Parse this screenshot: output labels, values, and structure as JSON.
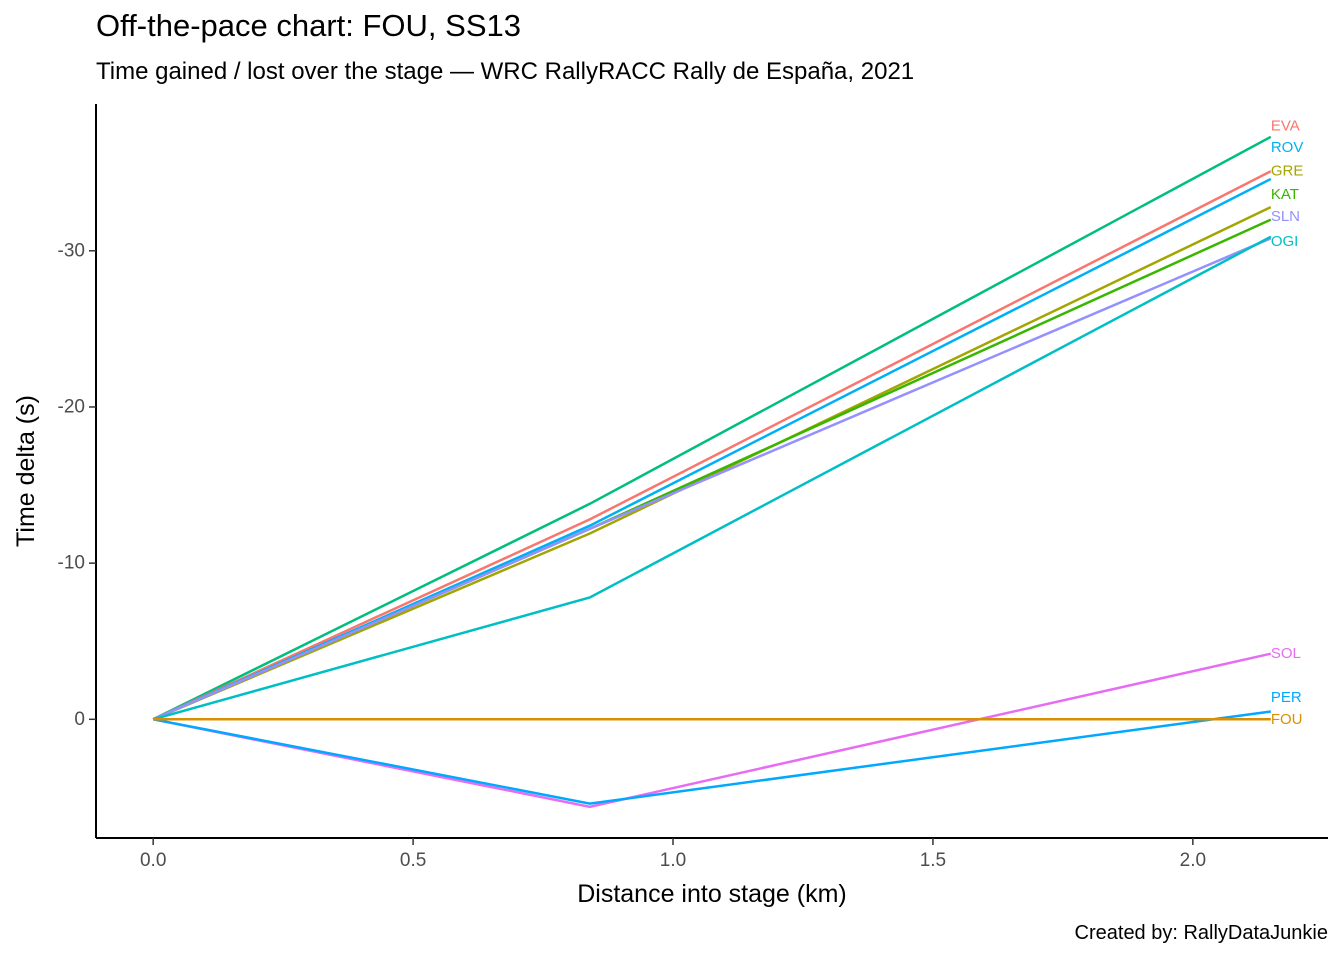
{
  "title": "Off-the-pace chart: FOU, SS13",
  "subtitle": "Time gained / lost over the stage — WRC RallyRACC Rally de España, 2021",
  "caption": "Created by: RallyDataJunkie",
  "chart_data": {
    "type": "line",
    "xlabel": "Distance into stage (km)",
    "ylabel": "Time delta (s)",
    "xlim": [
      -0.11,
      2.26
    ],
    "ylim": [
      7.6,
      -39.4
    ],
    "y_reversed": true,
    "x_ticks": [
      0.0,
      0.5,
      1.0,
      1.5,
      2.0
    ],
    "x_tick_labels": [
      "0.0",
      "0.5",
      "1.0",
      "1.5",
      "2.0"
    ],
    "y_ticks": [
      0,
      -10,
      -20,
      -30
    ],
    "y_tick_labels": [
      "0",
      "-10",
      "-20",
      "-30"
    ],
    "grid": false,
    "legend": "none",
    "x": [
      0,
      0.84,
      2.15
    ],
    "series": [
      {
        "name": "OGI",
        "color": "#00BF7D",
        "values": [
          0,
          -13.8,
          -37.3
        ],
        "label_y": -40.5
      },
      {
        "name": "EVA",
        "color": "#F8766D",
        "values": [
          0,
          -12.8,
          -35.1
        ],
        "label_y": -38.0
      },
      {
        "name": "ROV",
        "color": "#00B0F6",
        "values": [
          0,
          -12.4,
          -34.6
        ],
        "label_y": -36.6
      },
      {
        "name": "GRE",
        "color": "#A3A500",
        "values": [
          0,
          -11.9,
          -32.8
        ],
        "label_y": -35.1
      },
      {
        "name": "KAT",
        "color": "#39B600",
        "values": [
          0,
          -12.2,
          -32.0
        ],
        "label_y": -33.6
      },
      {
        "name": "SLN",
        "color": "#9590FF",
        "values": [
          0,
          -12.2,
          -30.8
        ],
        "label_y": -32.2
      },
      {
        "name": "OGI",
        "color": "#00BFC4",
        "values": [
          0,
          -7.8,
          -30.9
        ],
        "label_y": -30.6
      },
      {
        "name": "SOL",
        "color": "#E76BF3",
        "values": [
          0,
          5.6,
          -4.2
        ],
        "label_y": -4.2
      },
      {
        "name": "PER",
        "color": "#00A9FF",
        "values": [
          0,
          5.4,
          -0.5
        ],
        "label_y": -1.4
      },
      {
        "name": "FOU",
        "color": "#D89000",
        "values": [
          0,
          0,
          0
        ],
        "label_y": 0.0
      }
    ]
  }
}
